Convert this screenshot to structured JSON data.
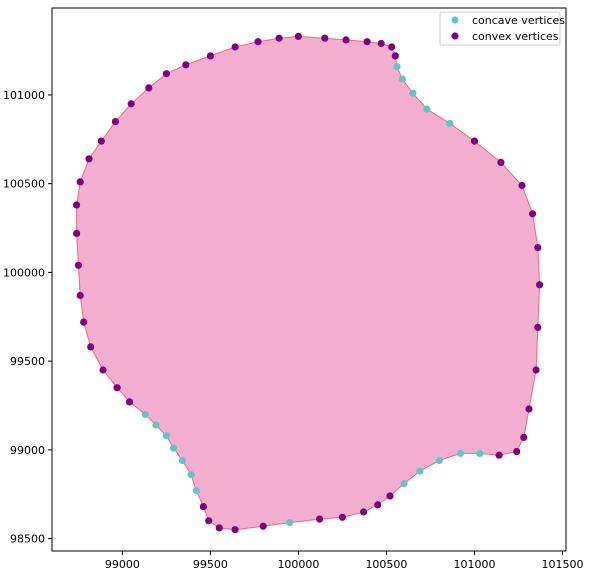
{
  "chart_data": {
    "type": "scatter",
    "title": "",
    "xlabel": "",
    "ylabel": "",
    "xlim": [
      98600,
      101520
    ],
    "ylim": [
      98430,
      101490
    ],
    "grid": false,
    "xticks": [
      99000,
      99500,
      100000,
      100500,
      101000,
      101500
    ],
    "yticks": [
      98500,
      99000,
      99500,
      100000,
      100500,
      101000
    ],
    "legend_position": "top-right",
    "polygon": {
      "fill": "#f4aed0",
      "stroke": "#f06a78",
      "points": [
        [
          100000,
          101330
        ],
        [
          100150,
          101320
        ],
        [
          100270,
          101310
        ],
        [
          100390,
          101300
        ],
        [
          100470,
          101290
        ],
        [
          100530,
          101270
        ],
        [
          100550,
          101220
        ],
        [
          100560,
          101160
        ],
        [
          100590,
          101090
        ],
        [
          100650,
          101010
        ],
        [
          100730,
          100920
        ],
        [
          100860,
          100840
        ],
        [
          101000,
          100740
        ],
        [
          101150,
          100620
        ],
        [
          101270,
          100490
        ],
        [
          101330,
          100330
        ],
        [
          101360,
          100140
        ],
        [
          101370,
          99930
        ],
        [
          101360,
          99690
        ],
        [
          101350,
          99450
        ],
        [
          101310,
          99230
        ],
        [
          101280,
          99070
        ],
        [
          101240,
          98990
        ],
        [
          101140,
          98970
        ],
        [
          101030,
          98980
        ],
        [
          100920,
          98980
        ],
        [
          100800,
          98940
        ],
        [
          100690,
          98880
        ],
        [
          100600,
          98810
        ],
        [
          100520,
          98740
        ],
        [
          100450,
          98690
        ],
        [
          100370,
          98650
        ],
        [
          100250,
          98620
        ],
        [
          100120,
          98610
        ],
        [
          99950,
          98590
        ],
        [
          99800,
          98570
        ],
        [
          99640,
          98550
        ],
        [
          99550,
          98560
        ],
        [
          99490,
          98600
        ],
        [
          99460,
          98680
        ],
        [
          99420,
          98770
        ],
        [
          99390,
          98860
        ],
        [
          99340,
          98940
        ],
        [
          99290,
          99010
        ],
        [
          99250,
          99080
        ],
        [
          99190,
          99140
        ],
        [
          99130,
          99200
        ],
        [
          99040,
          99270
        ],
        [
          98970,
          99350
        ],
        [
          98890,
          99450
        ],
        [
          98820,
          99580
        ],
        [
          98780,
          99720
        ],
        [
          98760,
          99870
        ],
        [
          98750,
          100040
        ],
        [
          98740,
          100220
        ],
        [
          98740,
          100380
        ],
        [
          98760,
          100510
        ],
        [
          98810,
          100640
        ],
        [
          98880,
          100740
        ],
        [
          98960,
          100850
        ],
        [
          99050,
          100950
        ],
        [
          99150,
          101040
        ],
        [
          99250,
          101120
        ],
        [
          99360,
          101170
        ],
        [
          99500,
          101220
        ],
        [
          99640,
          101270
        ],
        [
          99770,
          101300
        ],
        [
          99890,
          101320
        ]
      ]
    },
    "series": [
      {
        "name": "concave vertices",
        "color": "#5ec7c5",
        "points": [
          [
            100560,
            101160
          ],
          [
            100590,
            101090
          ],
          [
            100650,
            101010
          ],
          [
            100730,
            100920
          ],
          [
            100860,
            100840
          ],
          [
            100920,
            98980
          ],
          [
            101030,
            98980
          ],
          [
            100800,
            98940
          ],
          [
            100690,
            98880
          ],
          [
            100600,
            98810
          ],
          [
            99950,
            98590
          ],
          [
            99420,
            98770
          ],
          [
            99390,
            98860
          ],
          [
            99340,
            98940
          ],
          [
            99290,
            99010
          ],
          [
            99250,
            99080
          ],
          [
            99190,
            99140
          ],
          [
            99130,
            99200
          ]
        ]
      },
      {
        "name": "convex vertices",
        "color": "#800080",
        "points": [
          [
            100000,
            101330
          ],
          [
            100150,
            101320
          ],
          [
            100270,
            101310
          ],
          [
            100390,
            101300
          ],
          [
            100470,
            101290
          ],
          [
            100530,
            101270
          ],
          [
            100550,
            101220
          ],
          [
            101000,
            100740
          ],
          [
            101150,
            100620
          ],
          [
            101270,
            100490
          ],
          [
            101330,
            100330
          ],
          [
            101360,
            100140
          ],
          [
            101370,
            99930
          ],
          [
            101360,
            99690
          ],
          [
            101350,
            99450
          ],
          [
            101310,
            99230
          ],
          [
            101280,
            99070
          ],
          [
            101240,
            98990
          ],
          [
            101140,
            98970
          ],
          [
            100520,
            98740
          ],
          [
            100450,
            98690
          ],
          [
            100370,
            98650
          ],
          [
            100250,
            98620
          ],
          [
            100120,
            98610
          ],
          [
            99800,
            98570
          ],
          [
            99640,
            98550
          ],
          [
            99550,
            98560
          ],
          [
            99490,
            98600
          ],
          [
            99460,
            98680
          ],
          [
            99040,
            99270
          ],
          [
            98970,
            99350
          ],
          [
            98890,
            99450
          ],
          [
            98820,
            99580
          ],
          [
            98780,
            99720
          ],
          [
            98760,
            99870
          ],
          [
            98750,
            100040
          ],
          [
            98740,
            100220
          ],
          [
            98740,
            100380
          ],
          [
            98760,
            100510
          ],
          [
            98810,
            100640
          ],
          [
            98880,
            100740
          ],
          [
            98960,
            100850
          ],
          [
            99050,
            100950
          ],
          [
            99150,
            101040
          ],
          [
            99250,
            101120
          ],
          [
            99360,
            101170
          ],
          [
            99500,
            101220
          ],
          [
            99640,
            101270
          ],
          [
            99770,
            101300
          ],
          [
            99890,
            101320
          ]
        ]
      }
    ]
  }
}
